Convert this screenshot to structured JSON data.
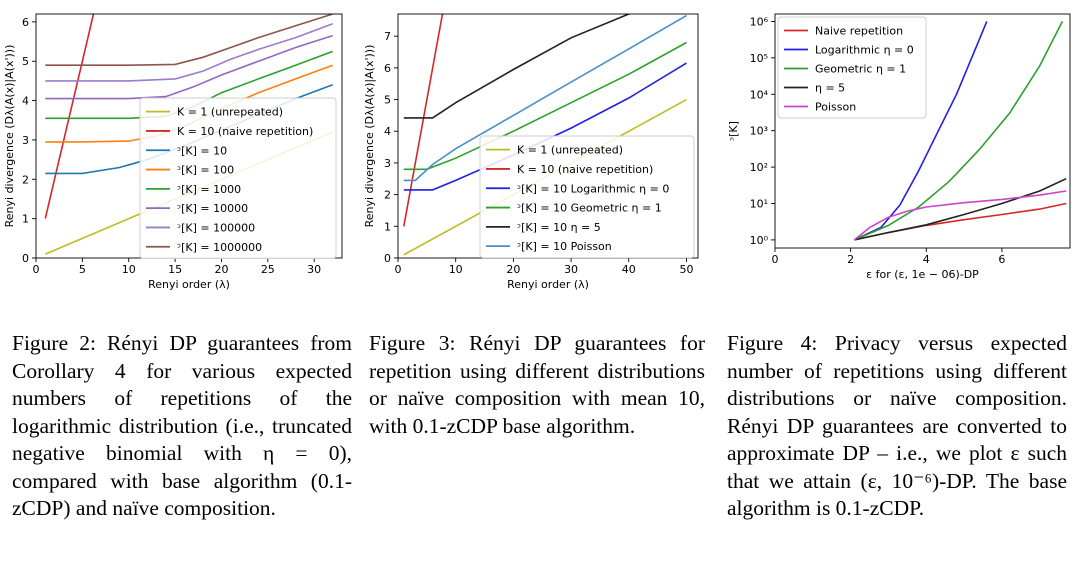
{
  "figures": [
    {
      "caption_label": "Figure 2:",
      "caption_text": "Rényi DP guarantees from Corollary 4 for various ex­pected numbers of repetitions of the logarithmic distribution (i.e., truncated negative binomial with η = 0), compared with base al­gorithm (0.1-zCDP) and naïve composition.",
      "chart_data": {
        "type": "line",
        "xlabel": "Renyi order (λ)",
        "ylabel": "Renyi divergence (Dλ(A(x)|A(x')))",
        "xlim": [
          0,
          33
        ],
        "ylim": [
          0,
          6.2
        ],
        "xticks": [
          0,
          5,
          10,
          15,
          20,
          25,
          30
        ],
        "yticks": [
          0,
          1,
          2,
          3,
          4,
          5,
          6
        ],
        "grid": false,
        "legend_position": "lower-right",
        "series": [
          {
            "name": "K = 1 (unrepeated)",
            "color": "#bcbd22",
            "x": [
              1,
              32
            ],
            "y": [
              0.1,
              3.2
            ]
          },
          {
            "name": "K = 10 (naive repetition)",
            "color": "#d62728",
            "x": [
              1,
              2,
              3,
              4,
              5,
              6,
              7
            ],
            "y": [
              1.0,
              2.0,
              3.0,
              4.0,
              5.0,
              6.0,
              7.0
            ]
          },
          {
            "name": "ᵓ[K] = 10",
            "color": "#1f77b4",
            "x": [
              1,
              5,
              9,
              12,
              16,
              20,
              24,
              28,
              32
            ],
            "y": [
              2.15,
              2.15,
              2.3,
              2.5,
              2.85,
              3.25,
              3.65,
              4.05,
              4.4
            ]
          },
          {
            "name": "ᵓ[K] = 100",
            "color": "#ff7f0e",
            "x": [
              1,
              5,
              10,
              13,
              16,
              20,
              24,
              28,
              32
            ],
            "y": [
              2.95,
              2.95,
              2.97,
              3.1,
              3.35,
              3.8,
              4.2,
              4.55,
              4.9
            ]
          },
          {
            "name": "ᵓ[K] = 1000",
            "color": "#2ca02c",
            "x": [
              1,
              5,
              10,
              14,
              17,
              20,
              24,
              28,
              32
            ],
            "y": [
              3.55,
              3.55,
              3.55,
              3.6,
              3.85,
              4.2,
              4.55,
              4.9,
              5.25
            ]
          },
          {
            "name": "ᵓ[K] = 10000",
            "color": "#9467bd",
            "x": [
              1,
              5,
              10,
              14,
              17,
              20,
              24,
              28,
              32
            ],
            "y": [
              4.05,
              4.05,
              4.05,
              4.1,
              4.35,
              4.65,
              5.0,
              5.35,
              5.65
            ]
          },
          {
            "name": "ᵓ[K] = 100000",
            "color": "#9b7bd0",
            "x": [
              1,
              5,
              10,
              15,
              18,
              21,
              24,
              28,
              32
            ],
            "y": [
              4.5,
              4.5,
              4.5,
              4.55,
              4.75,
              5.05,
              5.3,
              5.6,
              5.95
            ]
          },
          {
            "name": "ᵓ[K] = 1000000",
            "color": "#8c564b",
            "x": [
              1,
              5,
              10,
              15,
              18,
              21,
              24,
              28,
              32
            ],
            "y": [
              4.9,
              4.9,
              4.9,
              4.92,
              5.1,
              5.35,
              5.6,
              5.9,
              6.2
            ]
          }
        ]
      }
    },
    {
      "caption_label": "Figure 3:",
      "caption_text": "Rényi DP guarantees for repetition using different dis­tributions or naïve composition with mean 10, with 0.1-zCDP base algorithm.",
      "chart_data": {
        "type": "line",
        "xlabel": "Renyi order (λ)",
        "ylabel": "Renyi divergence (Dλ(A(x)|A(x')))",
        "xlim": [
          0,
          52
        ],
        "ylim": [
          0,
          7.7
        ],
        "xticks": [
          0,
          10,
          20,
          30,
          40,
          50
        ],
        "yticks": [
          0,
          1,
          2,
          3,
          4,
          5,
          6,
          7
        ],
        "grid": false,
        "legend_position": "lower-right",
        "series": [
          {
            "name": "K = 1 (unrepeated)",
            "color": "#bcbd22",
            "x": [
              1,
              50
            ],
            "y": [
              0.1,
              5.0
            ]
          },
          {
            "name": "K = 10 (naive repetition)",
            "color": "#d62728",
            "x": [
              1,
              8
            ],
            "y": [
              1.0,
              8.0
            ]
          },
          {
            "name": "ᵓ[K] = 10 Logarithmic η = 0",
            "color": "#1f1fe8",
            "x": [
              1,
              6,
              10,
              20,
              30,
              40,
              50
            ],
            "y": [
              2.15,
              2.15,
              2.45,
              3.25,
              4.1,
              5.05,
              6.15
            ]
          },
          {
            "name": "ᵓ[K] = 10 Geometric η = 1",
            "color": "#2ca02c",
            "x": [
              1,
              5,
              10,
              20,
              30,
              40,
              50
            ],
            "y": [
              2.8,
              2.8,
              3.15,
              4.0,
              4.9,
              5.8,
              6.8
            ]
          },
          {
            "name": "ᵓ[K] = 10 η = 5",
            "color": "#222222",
            "x": [
              1,
              6,
              10,
              20,
              30,
              40,
              44
            ],
            "y": [
              4.42,
              4.42,
              4.9,
              5.95,
              6.95,
              7.7,
              8.0
            ]
          },
          {
            "name": "ᵓ[K] = 10 Poisson",
            "color": "#4a8fc8",
            "x": [
              1,
              3,
              6,
              10,
              20,
              30,
              40,
              50
            ],
            "y": [
              2.45,
              2.45,
              2.95,
              3.45,
              4.5,
              5.55,
              6.6,
              7.65
            ]
          }
        ]
      }
    },
    {
      "caption_label": "Figure 4:",
      "caption_text": "Privacy versus ex­pected number of repetitions using different distributions or naïve composition. Rényi DP guarantees are converted to ap­proximate DP – i.e., we plot ε such that we attain (ε, 10⁻⁶)-DP. The base algorithm is 0.1-zCDP.",
      "chart_data": {
        "type": "line",
        "xlabel": "ε for (ε, 1e − 06)-DP",
        "ylabel": "ᵓ[K]",
        "xlim": [
          0,
          7.8
        ],
        "ylim": [
          0.6,
          1600000
        ],
        "yscale": "log",
        "xticks": [
          0,
          2,
          4,
          6
        ],
        "yticks": [
          1,
          10,
          100,
          1000,
          10000,
          100000,
          1000000
        ],
        "ytick_labels": [
          "10⁰",
          "10¹",
          "10²",
          "10³",
          "10⁴",
          "10⁵",
          "10⁶"
        ],
        "grid": false,
        "legend_position": "top-left",
        "series": [
          {
            "name": "Naive repetition",
            "color": "#d62728",
            "x": [
              2.1,
              3,
              4,
              5,
              6,
              7,
              7.7
            ],
            "y": [
              1,
              1.6,
              2.5,
              3.6,
              5.0,
              7.0,
              10
            ]
          },
          {
            "name": "Logarithmic η = 0",
            "color": "#1f1fe8",
            "x": [
              2.1,
              2.8,
              3.3,
              3.8,
              4.3,
              4.8,
              5.2,
              5.6
            ],
            "y": [
              1,
              2.2,
              9,
              80,
              900,
              10000,
              100000,
              1000000
            ]
          },
          {
            "name": "Geometric  η = 1",
            "color": "#2ca02c",
            "x": [
              2.1,
              3,
              3.8,
              4.6,
              5.4,
              6.2,
              7.0,
              7.6
            ],
            "y": [
              1,
              2.5,
              8,
              40,
              300,
              3000,
              60000,
              1000000
            ]
          },
          {
            "name": "η = 5",
            "color": "#222222",
            "x": [
              2.1,
              3,
              4,
              5,
              6,
              7,
              7.7
            ],
            "y": [
              1,
              1.6,
              2.6,
              5,
              10,
              22,
              48
            ]
          },
          {
            "name": "Poisson",
            "color": "#cc44cc",
            "x": [
              2.1,
              2.5,
              3,
              3.5,
              4,
              5,
              6,
              7,
              7.7
            ],
            "y": [
              1,
              2.2,
              4.2,
              6.2,
              8,
              10.5,
              13,
              17,
              22
            ]
          }
        ]
      }
    }
  ]
}
